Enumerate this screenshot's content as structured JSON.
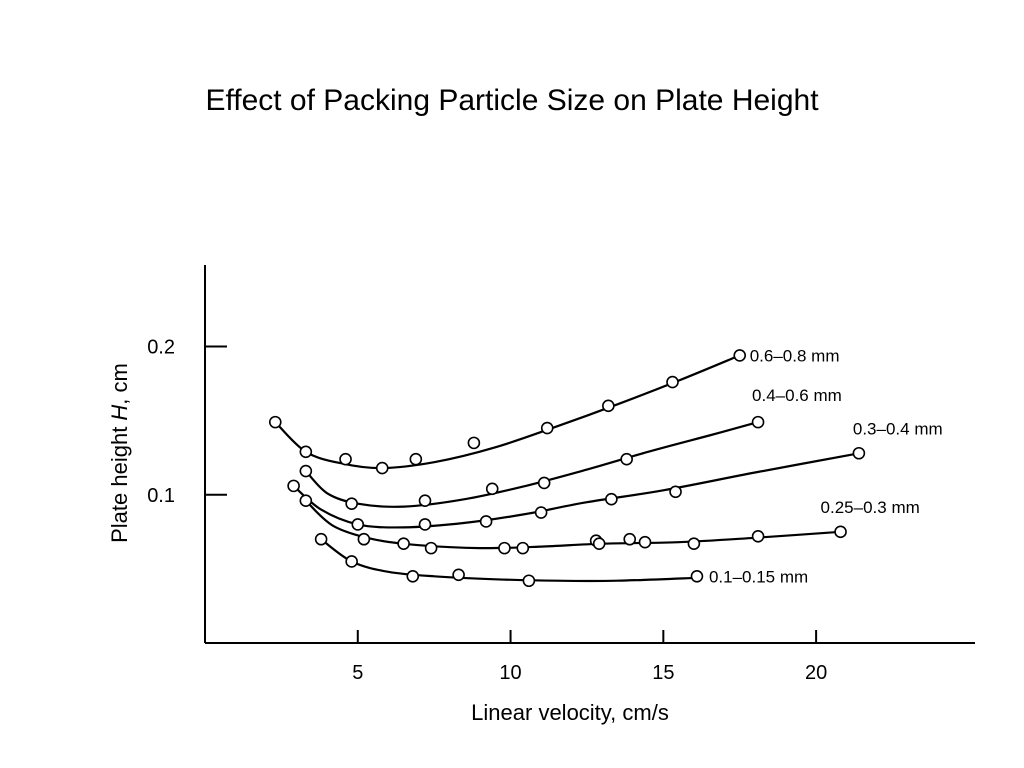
{
  "slide": {
    "title": "Effect of Packing Particle Size on Plate Height"
  },
  "chart_data": {
    "type": "line",
    "title": "",
    "xlabel": "Linear velocity, cm/s",
    "ylabel_prefix": "Plate height ",
    "ylabel_symbol": "H",
    "ylabel_suffix": ", cm",
    "xlim": [
      0,
      25.2
    ],
    "ylim": [
      0,
      0.255
    ],
    "x_ticks": [
      5,
      10,
      15,
      20
    ],
    "x_tick_labels": [
      "5",
      "10",
      "15",
      "20"
    ],
    "y_ticks": [
      0.1,
      0.2
    ],
    "y_tick_labels": [
      "0.1",
      "0.2"
    ],
    "grid": false,
    "legend": "inline labels at series ends",
    "line_color": "#000000",
    "marker": "open circle",
    "series": [
      {
        "name": "0.6–0.8 mm",
        "points": [
          [
            2.3,
            0.149
          ],
          [
            3.3,
            0.129
          ],
          [
            4.6,
            0.124
          ],
          [
            5.8,
            0.118
          ],
          [
            6.9,
            0.124
          ],
          [
            8.8,
            0.135
          ],
          [
            11.2,
            0.145
          ],
          [
            13.2,
            0.16
          ],
          [
            15.3,
            0.176
          ],
          [
            17.5,
            0.194
          ]
        ],
        "curve": [
          [
            2.3,
            0.149
          ],
          [
            3.3,
            0.129
          ],
          [
            4.5,
            0.121
          ],
          [
            5.8,
            0.118
          ],
          [
            7.5,
            0.122
          ],
          [
            9.5,
            0.132
          ],
          [
            11.5,
            0.146
          ],
          [
            13.5,
            0.161
          ],
          [
            15.5,
            0.177
          ],
          [
            17.5,
            0.194
          ]
        ]
      },
      {
        "name": "0.4–0.6 mm",
        "points": [
          [
            3.3,
            0.116
          ],
          [
            4.8,
            0.094
          ],
          [
            7.2,
            0.096
          ],
          [
            9.4,
            0.104
          ],
          [
            11.1,
            0.108
          ],
          [
            13.8,
            0.124
          ],
          [
            18.1,
            0.149
          ]
        ],
        "curve": [
          [
            3.3,
            0.116
          ],
          [
            4.0,
            0.101
          ],
          [
            5.0,
            0.094
          ],
          [
            6.5,
            0.092
          ],
          [
            8.5,
            0.097
          ],
          [
            10.5,
            0.106
          ],
          [
            12.5,
            0.117
          ],
          [
            14.5,
            0.129
          ],
          [
            16.5,
            0.14
          ],
          [
            18.1,
            0.149
          ]
        ]
      },
      {
        "name": "0.3–0.4 mm",
        "points": [
          [
            2.9,
            0.106
          ],
          [
            5.0,
            0.08
          ],
          [
            7.2,
            0.08
          ],
          [
            9.2,
            0.082
          ],
          [
            11.0,
            0.088
          ],
          [
            13.3,
            0.097
          ],
          [
            15.4,
            0.102
          ],
          [
            21.4,
            0.128
          ]
        ],
        "curve": [
          [
            2.9,
            0.106
          ],
          [
            3.8,
            0.09
          ],
          [
            5.0,
            0.08
          ],
          [
            6.5,
            0.078
          ],
          [
            8.5,
            0.081
          ],
          [
            10.5,
            0.087
          ],
          [
            12.5,
            0.095
          ],
          [
            15.0,
            0.103
          ],
          [
            18.0,
            0.115
          ],
          [
            21.4,
            0.128
          ]
        ]
      },
      {
        "name": "0.25–0.3 mm",
        "points": [
          [
            3.3,
            0.096
          ],
          [
            5.2,
            0.07
          ],
          [
            6.5,
            0.067
          ],
          [
            7.4,
            0.064
          ],
          [
            9.8,
            0.064
          ],
          [
            10.4,
            0.064
          ],
          [
            12.8,
            0.069
          ],
          [
            12.9,
            0.067
          ],
          [
            13.9,
            0.07
          ],
          [
            14.4,
            0.068
          ],
          [
            16.0,
            0.067
          ],
          [
            18.1,
            0.072
          ],
          [
            20.8,
            0.075
          ]
        ],
        "curve": [
          [
            3.3,
            0.096
          ],
          [
            4.2,
            0.079
          ],
          [
            5.5,
            0.07
          ],
          [
            7.0,
            0.066
          ],
          [
            9.0,
            0.064
          ],
          [
            11.0,
            0.065
          ],
          [
            13.0,
            0.067
          ],
          [
            15.5,
            0.068
          ],
          [
            18.0,
            0.071
          ],
          [
            20.8,
            0.075
          ]
        ]
      },
      {
        "name": "0.1–0.15 mm",
        "points": [
          [
            3.8,
            0.07
          ],
          [
            4.8,
            0.055
          ],
          [
            6.8,
            0.045
          ],
          [
            8.3,
            0.046
          ],
          [
            10.6,
            0.042
          ],
          [
            16.1,
            0.045
          ]
        ],
        "curve": [
          [
            3.8,
            0.07
          ],
          [
            4.8,
            0.055
          ],
          [
            6.0,
            0.048
          ],
          [
            7.5,
            0.045
          ],
          [
            9.5,
            0.043
          ],
          [
            11.5,
            0.042
          ],
          [
            13.5,
            0.042
          ],
          [
            16.1,
            0.044
          ]
        ]
      }
    ]
  }
}
